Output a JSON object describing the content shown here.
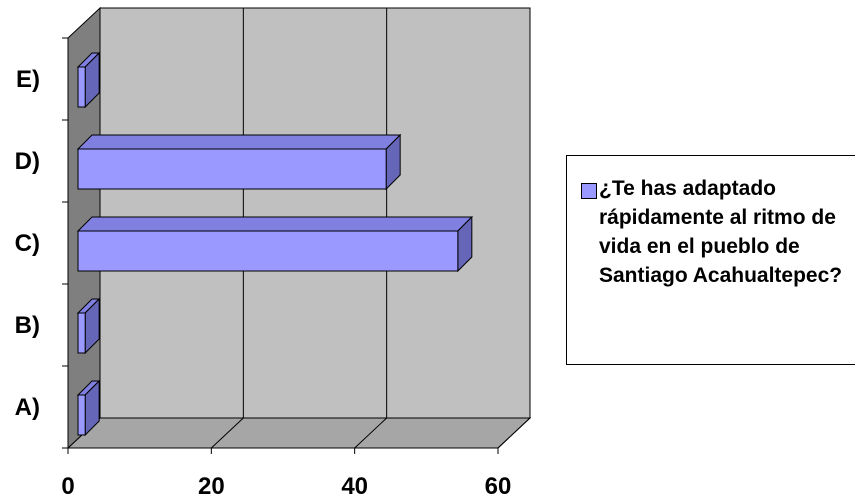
{
  "chart_data": {
    "type": "bar",
    "orientation": "horizontal",
    "three_d": true,
    "categories": [
      "A)",
      "B)",
      "C)",
      "D)",
      "E)"
    ],
    "series": [
      {
        "name": "¿Te has adaptado rápidamente al ritmo de vida en el pueblo de Santiago Acahualtepec?",
        "values": [
          1,
          1,
          53,
          43,
          1
        ]
      }
    ],
    "x_ticks": [
      "0",
      "20",
      "40",
      "60"
    ],
    "xlim": [
      0,
      60
    ],
    "grid": true,
    "legend_position": "right",
    "colors": {
      "bar_front": "#9999ff",
      "bar_top": "#8080e0",
      "bar_side": "#6666b8",
      "plot_back": "#c0c0c0",
      "plot_floor": "#a6a6a6",
      "plot_wall": "#7f7f7f",
      "gridline": "#000000"
    }
  }
}
